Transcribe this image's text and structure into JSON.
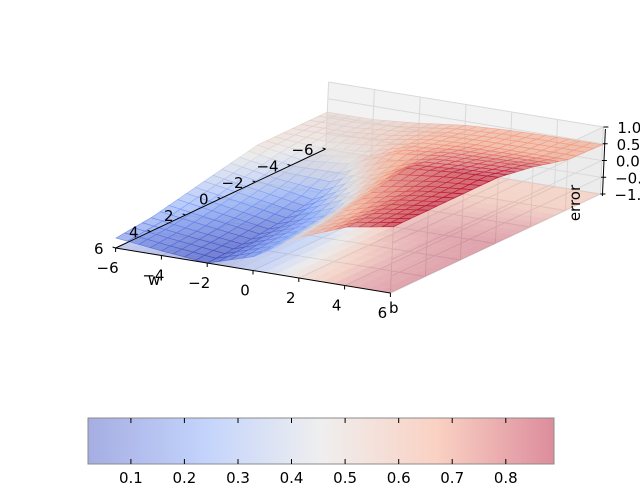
{
  "chart_data": [
    {
      "type": "surface3d",
      "title": "",
      "xlabel": "w",
      "ylabel": "b",
      "zlabel": "error",
      "xlim": [
        -6,
        6
      ],
      "ylim": [
        -6,
        6
      ],
      "zlim": [
        -1.0,
        1.0
      ],
      "xticks": [
        "−6",
        "−4",
        "−2",
        "0",
        "2",
        "4",
        "6"
      ],
      "yticks": [
        "−6",
        "−4",
        "−2",
        "0",
        "2",
        "4",
        "6"
      ],
      "zticks": [
        "−1.0",
        "−0.5",
        "0.0",
        "0.5",
        "1.0"
      ],
      "colormap": "coolwarm",
      "grid": true,
      "surface": {
        "description_values": "error surface over w and b",
        "w_samples": [
          -6,
          -4,
          -2,
          0,
          2,
          4,
          6
        ],
        "b_samples": [
          -6,
          -4,
          -2,
          0,
          2,
          4,
          6
        ],
        "error": [
          [
            0.5,
            0.5,
            0.55,
            0.62,
            0.65,
            0.66,
            0.66
          ],
          [
            0.5,
            0.5,
            0.55,
            0.65,
            0.68,
            0.68,
            0.68
          ],
          [
            0.5,
            0.4,
            0.45,
            0.68,
            0.75,
            0.78,
            0.8
          ],
          [
            0.4,
            0.3,
            0.2,
            0.5,
            0.8,
            0.85,
            0.88
          ],
          [
            0.3,
            0.2,
            0.1,
            0.3,
            0.7,
            0.82,
            0.88
          ],
          [
            0.2,
            0.12,
            0.05,
            0.25,
            0.6,
            0.8,
            0.88
          ],
          [
            0.15,
            0.08,
            0.02,
            0.2,
            0.55,
            0.78,
            0.88
          ]
        ]
      },
      "contour_offset": -1.0
    },
    {
      "type": "colorbar",
      "orientation": "horizontal",
      "colormap": "coolwarm",
      "range": [
        0.02,
        0.89
      ],
      "ticks": [
        "0.1",
        "0.2",
        "0.3",
        "0.4",
        "0.5",
        "0.6",
        "0.7",
        "0.8"
      ]
    }
  ]
}
